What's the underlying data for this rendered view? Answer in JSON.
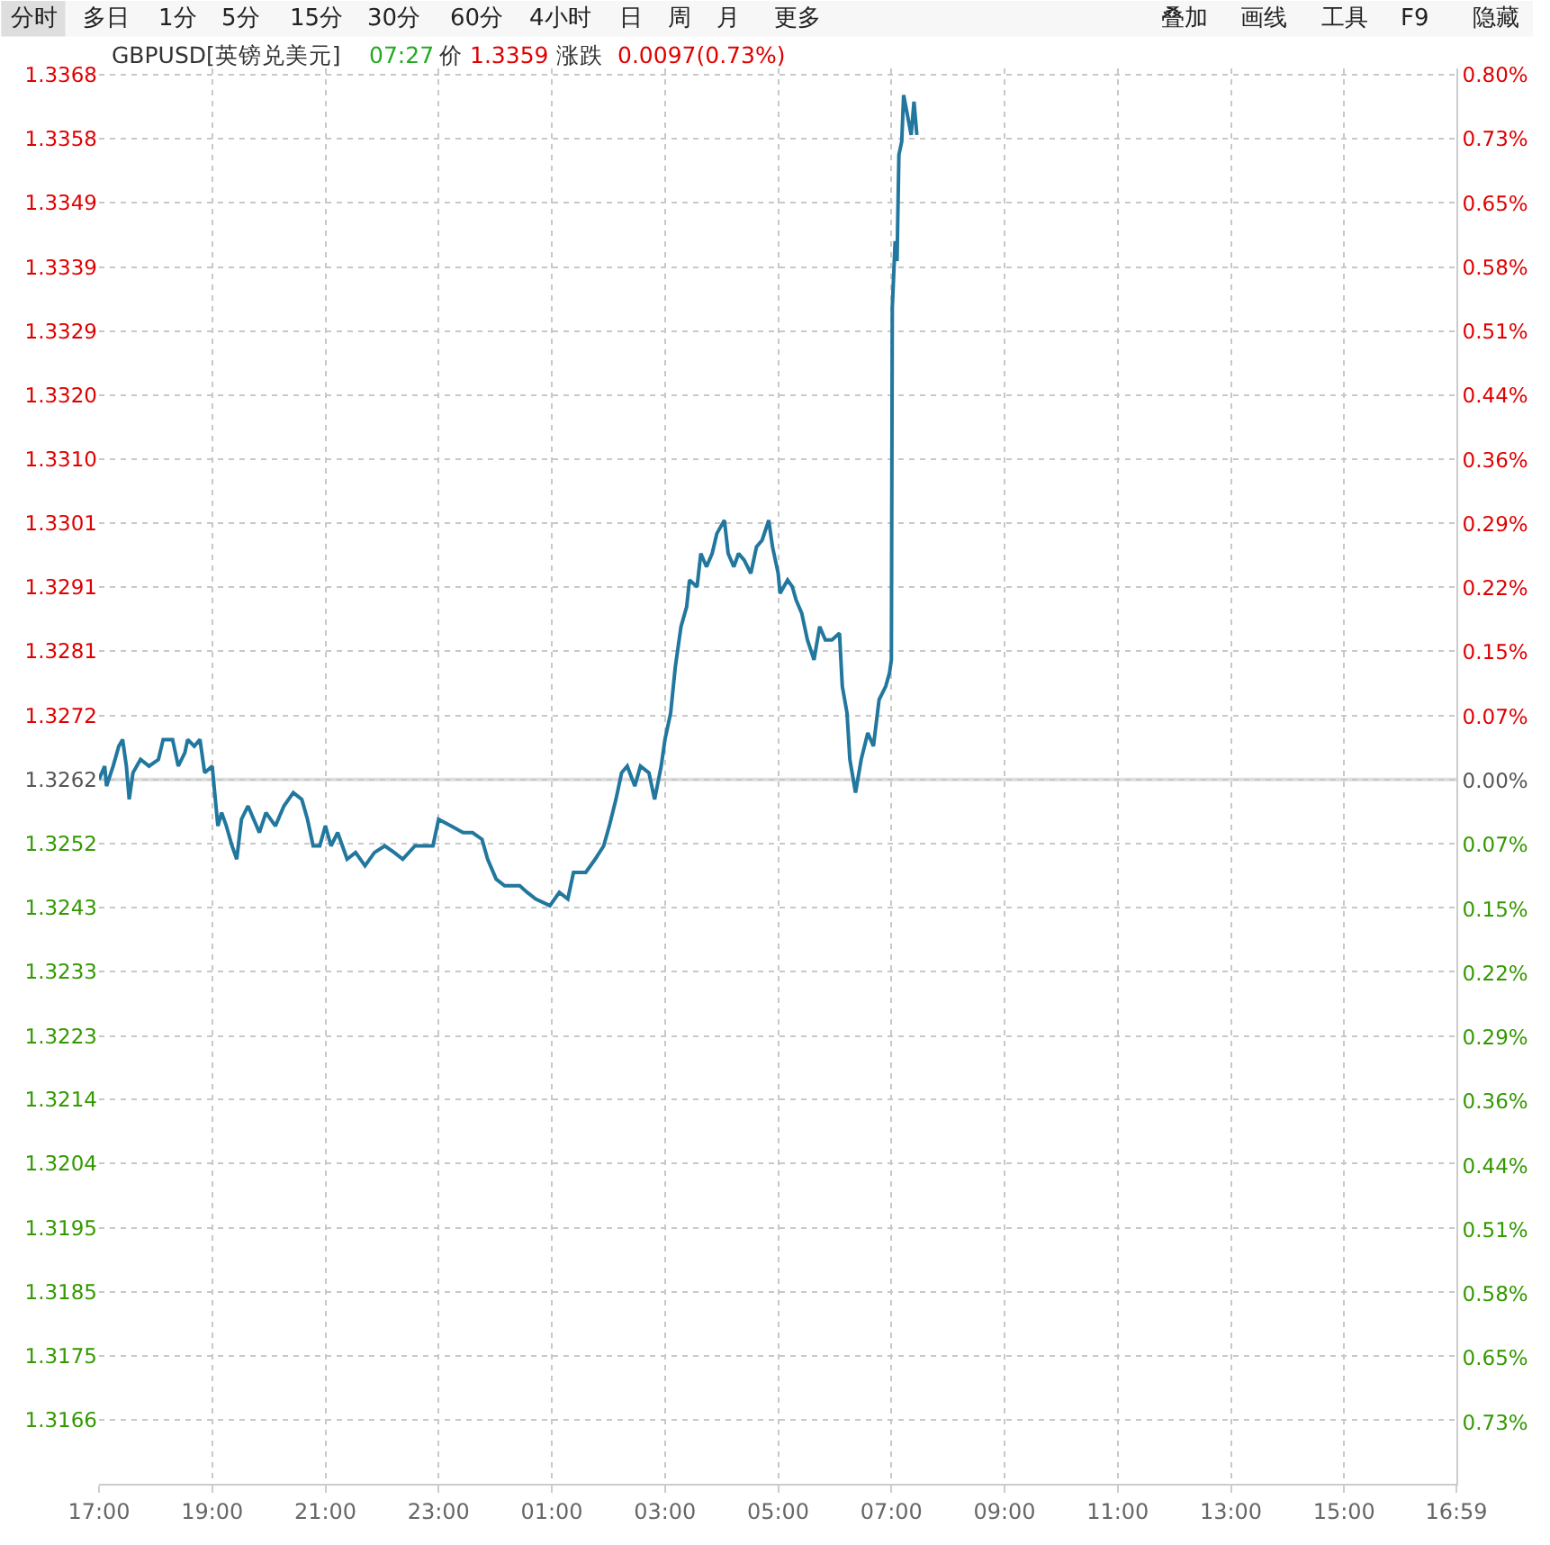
{
  "chart_data": {
    "type": "line",
    "annotations": [
      "分时",
      "多日",
      "1分",
      "5分",
      "15分",
      "30分",
      "60分",
      "4小时",
      "日",
      "周",
      "月",
      "更多",
      "叠加",
      "画线",
      "工具",
      "F9",
      "隐藏",
      "GBPUSD[英镑兑美元]",
      "07:27",
      "价",
      "1.3359",
      "涨跌",
      "0.0097(0.73%)"
    ],
    "x": [
      "--01-01T17:00",
      "--01-01T17:06",
      "--01-01T17:08",
      "--01-01T17:15",
      "--01-01T17:21",
      "--01-01T17:25",
      "--01-01T17:29",
      "--01-01T17:32",
      "--01-01T17:36",
      "--01-01T17:44",
      "--01-01T17:53",
      "--01-01T18:03",
      "--01-01T18:08",
      "--01-01T18:18",
      "--01-01T18:24",
      "--01-01T18:31",
      "--01-01T18:34",
      "--01-01T18:41",
      "--01-01T18:47",
      "--01-01T18:52",
      "--01-01T19:00",
      "--01-01T19:02",
      "--01-01T19:06",
      "--01-01T19:10",
      "--01-01T19:15",
      "--01-01T19:21",
      "--01-01T19:26",
      "--01-01T19:31",
      "--01-01T19:38",
      "--01-01T19:44",
      "--01-01T19:50",
      "--01-01T19:57",
      "--01-01T20:07",
      "--01-01T20:16",
      "--01-01T20:26",
      "--01-01T20:35",
      "--01-01T20:41",
      "--01-01T20:47",
      "--01-01T20:54",
      "--01-01T21:00",
      "--01-01T21:06",
      "--01-01T21:13",
      "--01-01T21:23",
      "--01-01T21:32",
      "--01-01T21:42",
      "--01-01T21:52",
      "--01-01T22:03",
      "--01-01T22:13",
      "--01-01T22:22",
      "--01-01T22:35",
      "--01-01T22:45",
      "--01-01T22:54",
      "--01-01T23:00",
      "--01-01T23:13",
      "--01-01T23:26",
      "--01-01T23:36",
      "--01-01T23:46",
      "--01-01T23:52",
      "--01-02T00:01",
      "--01-02T00:10",
      "--01-02T00:20",
      "--01-02T00:26",
      "--01-02T00:34",
      "--01-02T00:43",
      "--01-02T00:58",
      "--01-02T01:08",
      "--01-02T01:17",
      "--01-02T01:23",
      "--01-02T01:36",
      "--01-02T01:46",
      "--01-02T01:55",
      "--01-02T02:01",
      "--01-02T02:08",
      "--01-02T02:14",
      "--01-02T02:20",
      "--01-02T02:28",
      "--01-02T02:34",
      "--01-02T02:43",
      "--01-02T02:49",
      "--01-02T02:56",
      "--01-02T03:00",
      "--01-02T03:06",
      "--01-02T03:11",
      "--01-02T03:17",
      "--01-02T03:23",
      "--01-02T03:26",
      "--01-02T03:34",
      "--01-02T03:38",
      "--01-02T03:44",
      "--01-02T03:50",
      "--01-02T03:55",
      "--01-02T04:03",
      "--01-02T04:07",
      "--01-02T04:13",
      "--01-02T04:18",
      "--01-02T04:24",
      "--01-02T04:31",
      "--01-02T04:37",
      "--01-02T04:43",
      "--01-02T04:50",
      "--01-02T04:54",
      "--01-02T05:00",
      "--01-02T05:02",
      "--01-02T05:10",
      "--01-02T05:15",
      "--01-02T05:19",
      "--01-02T05:25",
      "--01-02T05:31",
      "--01-02T05:38",
      "--01-02T05:44",
      "--01-02T05:50",
      "--01-02T05:57",
      "--01-02T06:05",
      "--01-02T06:08",
      "--01-02T06:13",
      "--01-02T06:16",
      "--01-02T06:22",
      "--01-02T06:28",
      "--01-02T06:35",
      "--01-02T06:41",
      "--01-02T06:47",
      "--01-02T06:54",
      "--01-02T06:58",
      "--01-02T07:00",
      "--01-02T07:01",
      "--01-02T07:04",
      "--01-02T07:06",
      "--01-02T07:08",
      "--01-02T07:11",
      "--01-02T07:13",
      "--01-02T07:17",
      "--01-02T07:21",
      "--01-02T07:24",
      "--01-02T07:27"
    ],
    "series": [
      {
        "color": "#21779e",
        "values": [
          1.3262,
          1.3264,
          1.3261,
          1.3264,
          1.3267,
          1.3268,
          1.3264,
          1.3259,
          1.3263,
          1.3265,
          1.3264,
          1.3265,
          1.3268,
          1.3268,
          1.3264,
          1.3266,
          1.3268,
          1.3267,
          1.3268,
          1.3263,
          1.3264,
          1.3261,
          1.3255,
          1.3257,
          1.3255,
          1.3252,
          1.325,
          1.3256,
          1.3258,
          1.3256,
          1.3254,
          1.3257,
          1.3255,
          1.3258,
          1.326,
          1.3259,
          1.3256,
          1.3252,
          1.3252,
          1.3255,
          1.3252,
          1.3254,
          1.325,
          1.3251,
          1.3249,
          1.3251,
          1.3252,
          1.3251,
          1.325,
          1.3252,
          1.3252,
          1.3252,
          1.3256,
          1.3255,
          1.3254,
          1.3254,
          1.3253,
          1.325,
          1.3247,
          1.3246,
          1.3246,
          1.3246,
          1.3245,
          1.3244,
          1.3243,
          1.3245,
          1.3244,
          1.3248,
          1.3248,
          1.325,
          1.3252,
          1.3255,
          1.3259,
          1.3263,
          1.3264,
          1.3261,
          1.3264,
          1.3263,
          1.3259,
          1.3264,
          1.3268,
          1.3272,
          1.3279,
          1.3285,
          1.3288,
          1.3292,
          1.3291,
          1.3296,
          1.3294,
          1.3296,
          1.3299,
          1.3301,
          1.3296,
          1.3294,
          1.3296,
          1.3295,
          1.3293,
          1.3297,
          1.3298,
          1.3301,
          1.3297,
          1.3293,
          1.329,
          1.3292,
          1.3291,
          1.3289,
          1.3287,
          1.3283,
          1.328,
          1.3285,
          1.3283,
          1.3283,
          1.3284,
          1.3276,
          1.3272,
          1.3265,
          1.326,
          1.3265,
          1.3269,
          1.3267,
          1.3274,
          1.3276,
          1.3278,
          1.328,
          1.3333,
          1.3343,
          1.334,
          1.3356,
          1.3358,
          1.3365,
          1.3362,
          1.3359,
          1.3364,
          1.3359
        ]
      }
    ],
    "xlim": [
      "--01-01T17:00",
      "--01-02T16:59"
    ],
    "xticks": [
      {
        "value": "--01-01T17:00",
        "label": "17:00"
      },
      {
        "value": "--01-01T19:00",
        "label": "19:00"
      },
      {
        "value": "--01-01T21:00",
        "label": "21:00"
      },
      {
        "value": "--01-01T23:00",
        "label": "23:00"
      },
      {
        "value": "--01-02T01:00",
        "label": "01:00"
      },
      {
        "value": "--01-02T03:00",
        "label": "03:00"
      },
      {
        "value": "--01-02T05:00",
        "label": "05:00"
      },
      {
        "value": "--01-02T07:00",
        "label": "07:00"
      },
      {
        "value": "--01-02T09:00",
        "label": "09:00"
      },
      {
        "value": "--01-02T11:00",
        "label": "11:00"
      },
      {
        "value": "--01-02T13:00",
        "label": "13:00"
      },
      {
        "value": "--01-02T15:00",
        "label": "15:00"
      },
      {
        "value": "--01-02T16:59",
        "label": "16:59"
      }
    ],
    "ylim": [
      1.3156,
      1.3369
    ],
    "yticks": [
      {
        "value": 1.31656,
        "label": "1.3166"
      },
      {
        "value": 1.31752,
        "label": "1.3175"
      },
      {
        "value": 1.31849,
        "label": "1.3185"
      },
      {
        "value": 1.31945,
        "label": "1.3195"
      },
      {
        "value": 1.32042,
        "label": "1.3204"
      },
      {
        "value": 1.32138,
        "label": "1.3214"
      },
      {
        "value": 1.32234,
        "label": "1.3223"
      },
      {
        "value": 1.32331,
        "label": "1.3233"
      },
      {
        "value": 1.32427,
        "label": "1.3243"
      },
      {
        "value": 1.32524,
        "label": "1.3252"
      },
      1.3262,
      {
        "value": 1.32716,
        "label": "1.3272"
      },
      {
        "value": 1.32813,
        "label": "1.3281"
      },
      {
        "value": 1.32909,
        "label": "1.3291"
      },
      {
        "value": 1.33006,
        "label": "1.3301"
      },
      {
        "value": 1.33102,
        "label": "1.3310"
      },
      {
        "value": 1.33198,
        "label": "1.3320"
      },
      {
        "value": 1.33295,
        "label": "1.3329"
      },
      {
        "value": 1.33391,
        "label": "1.3339"
      },
      {
        "value": 1.33488,
        "label": "1.3349"
      },
      {
        "value": 1.33584,
        "label": "1.3358"
      },
      {
        "value": 1.33681,
        "label": "1.3368"
      }
    ],
    "y2lim": [
      -0.797,
      0.807
    ],
    "y2ticks": [
      {
        "value": -0.7273,
        "label": "0.73%"
      },
      {
        "value": -0.6545,
        "label": "0.65%"
      },
      {
        "value": -0.5818,
        "label": "0.58%"
      },
      {
        "value": -0.5091,
        "label": "0.51%"
      },
      {
        "value": -0.4364,
        "label": "0.44%"
      },
      {
        "value": -0.3636,
        "label": "0.36%"
      },
      {
        "value": -0.2909,
        "label": "0.29%"
      },
      {
        "value": -0.2182,
        "label": "0.22%"
      },
      {
        "value": -0.1455,
        "label": "0.15%"
      },
      {
        "value": -0.0727,
        "label": "0.07%"
      },
      {
        "value": 0,
        "label": "0.00%"
      },
      {
        "value": 0.0727,
        "label": "0.07%"
      },
      {
        "value": 0.1455,
        "label": "0.15%"
      },
      {
        "value": 0.2182,
        "label": "0.22%"
      },
      {
        "value": 0.2909,
        "label": "0.29%"
      },
      {
        "value": 0.3636,
        "label": "0.36%"
      },
      {
        "value": 0.4364,
        "label": "0.44%"
      },
      {
        "value": 0.5091,
        "label": "0.51%"
      },
      {
        "value": 0.5818,
        "label": "0.58%"
      },
      {
        "value": 0.6545,
        "label": "0.65%"
      },
      {
        "value": 0.7273,
        "label": "0.73%"
      },
      {
        "value": 0.8,
        "label": "0.80%"
      }
    ],
    "ref_lines": [
      {
        "axis": "y",
        "value": 1.3262,
        "color": "#dddddd"
      }
    ],
    "grid": true,
    "marker": "none",
    "line_style": "solid"
  }
}
